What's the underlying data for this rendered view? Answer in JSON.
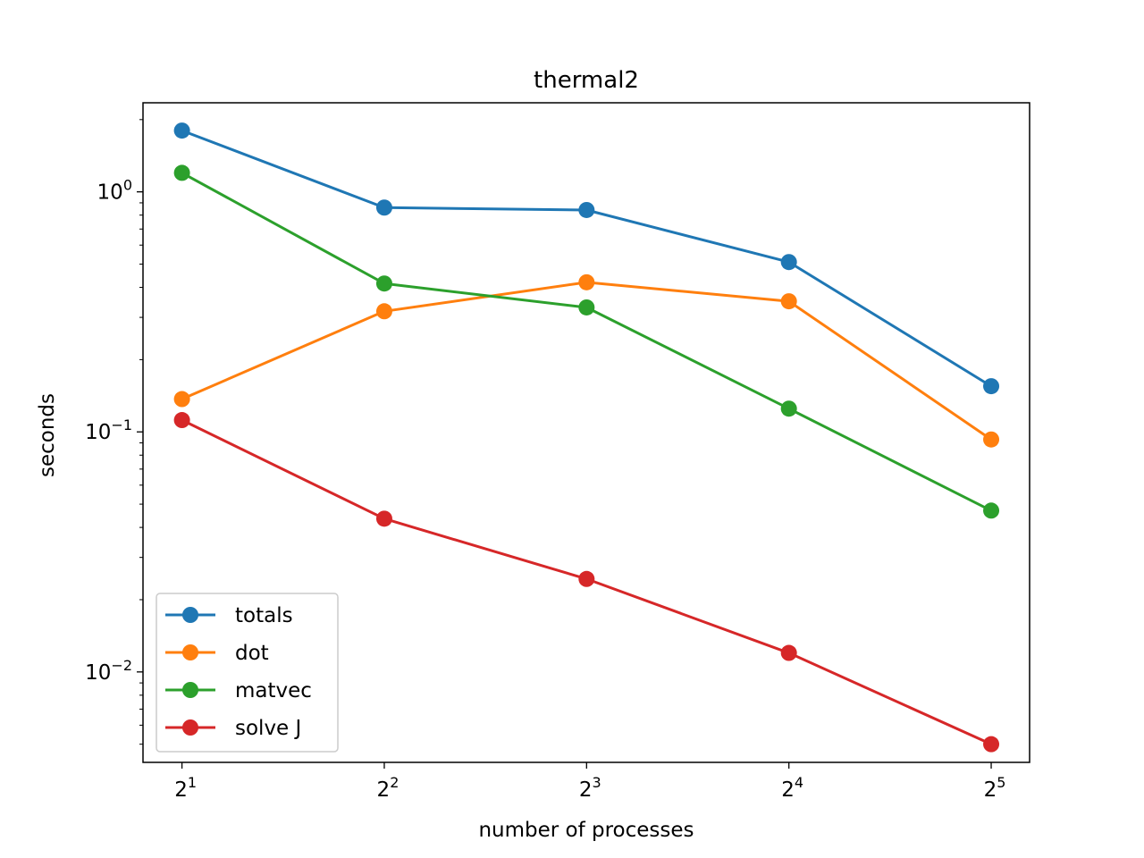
{
  "chart_data": {
    "type": "line",
    "title": "thermal2",
    "xlabel": "number of processes",
    "ylabel": "seconds",
    "xscale": "log2",
    "yscale": "log10",
    "x": [
      2,
      4,
      8,
      16,
      32
    ],
    "x_tick_labels": [
      {
        "base": "2",
        "exp": "1"
      },
      {
        "base": "2",
        "exp": "2"
      },
      {
        "base": "2",
        "exp": "3"
      },
      {
        "base": "2",
        "exp": "4"
      },
      {
        "base": "2",
        "exp": "5"
      }
    ],
    "y_tick_labels": [
      {
        "value": 1,
        "base": "10",
        "exp": "0"
      },
      {
        "value": 0.1,
        "base": "10",
        "exp": "−1"
      },
      {
        "value": 0.01,
        "base": "10",
        "exp": "−2"
      }
    ],
    "xlim": [
      1.75,
      36.5
    ],
    "ylim": [
      0.0042,
      2.35
    ],
    "legend_position": "lower-left",
    "series": [
      {
        "name": "totals",
        "color": "#1f77b4",
        "values": [
          1.8,
          0.86,
          0.84,
          0.51,
          0.155
        ]
      },
      {
        "name": "dot",
        "color": "#ff7f0e",
        "values": [
          0.137,
          0.318,
          0.42,
          0.35,
          0.093
        ]
      },
      {
        "name": "matvec",
        "color": "#2ca02c",
        "values": [
          1.2,
          0.415,
          0.33,
          0.125,
          0.047
        ]
      },
      {
        "name": "solve J",
        "color": "#d62728",
        "values": [
          0.112,
          0.0435,
          0.0244,
          0.012,
          0.005
        ]
      }
    ]
  }
}
